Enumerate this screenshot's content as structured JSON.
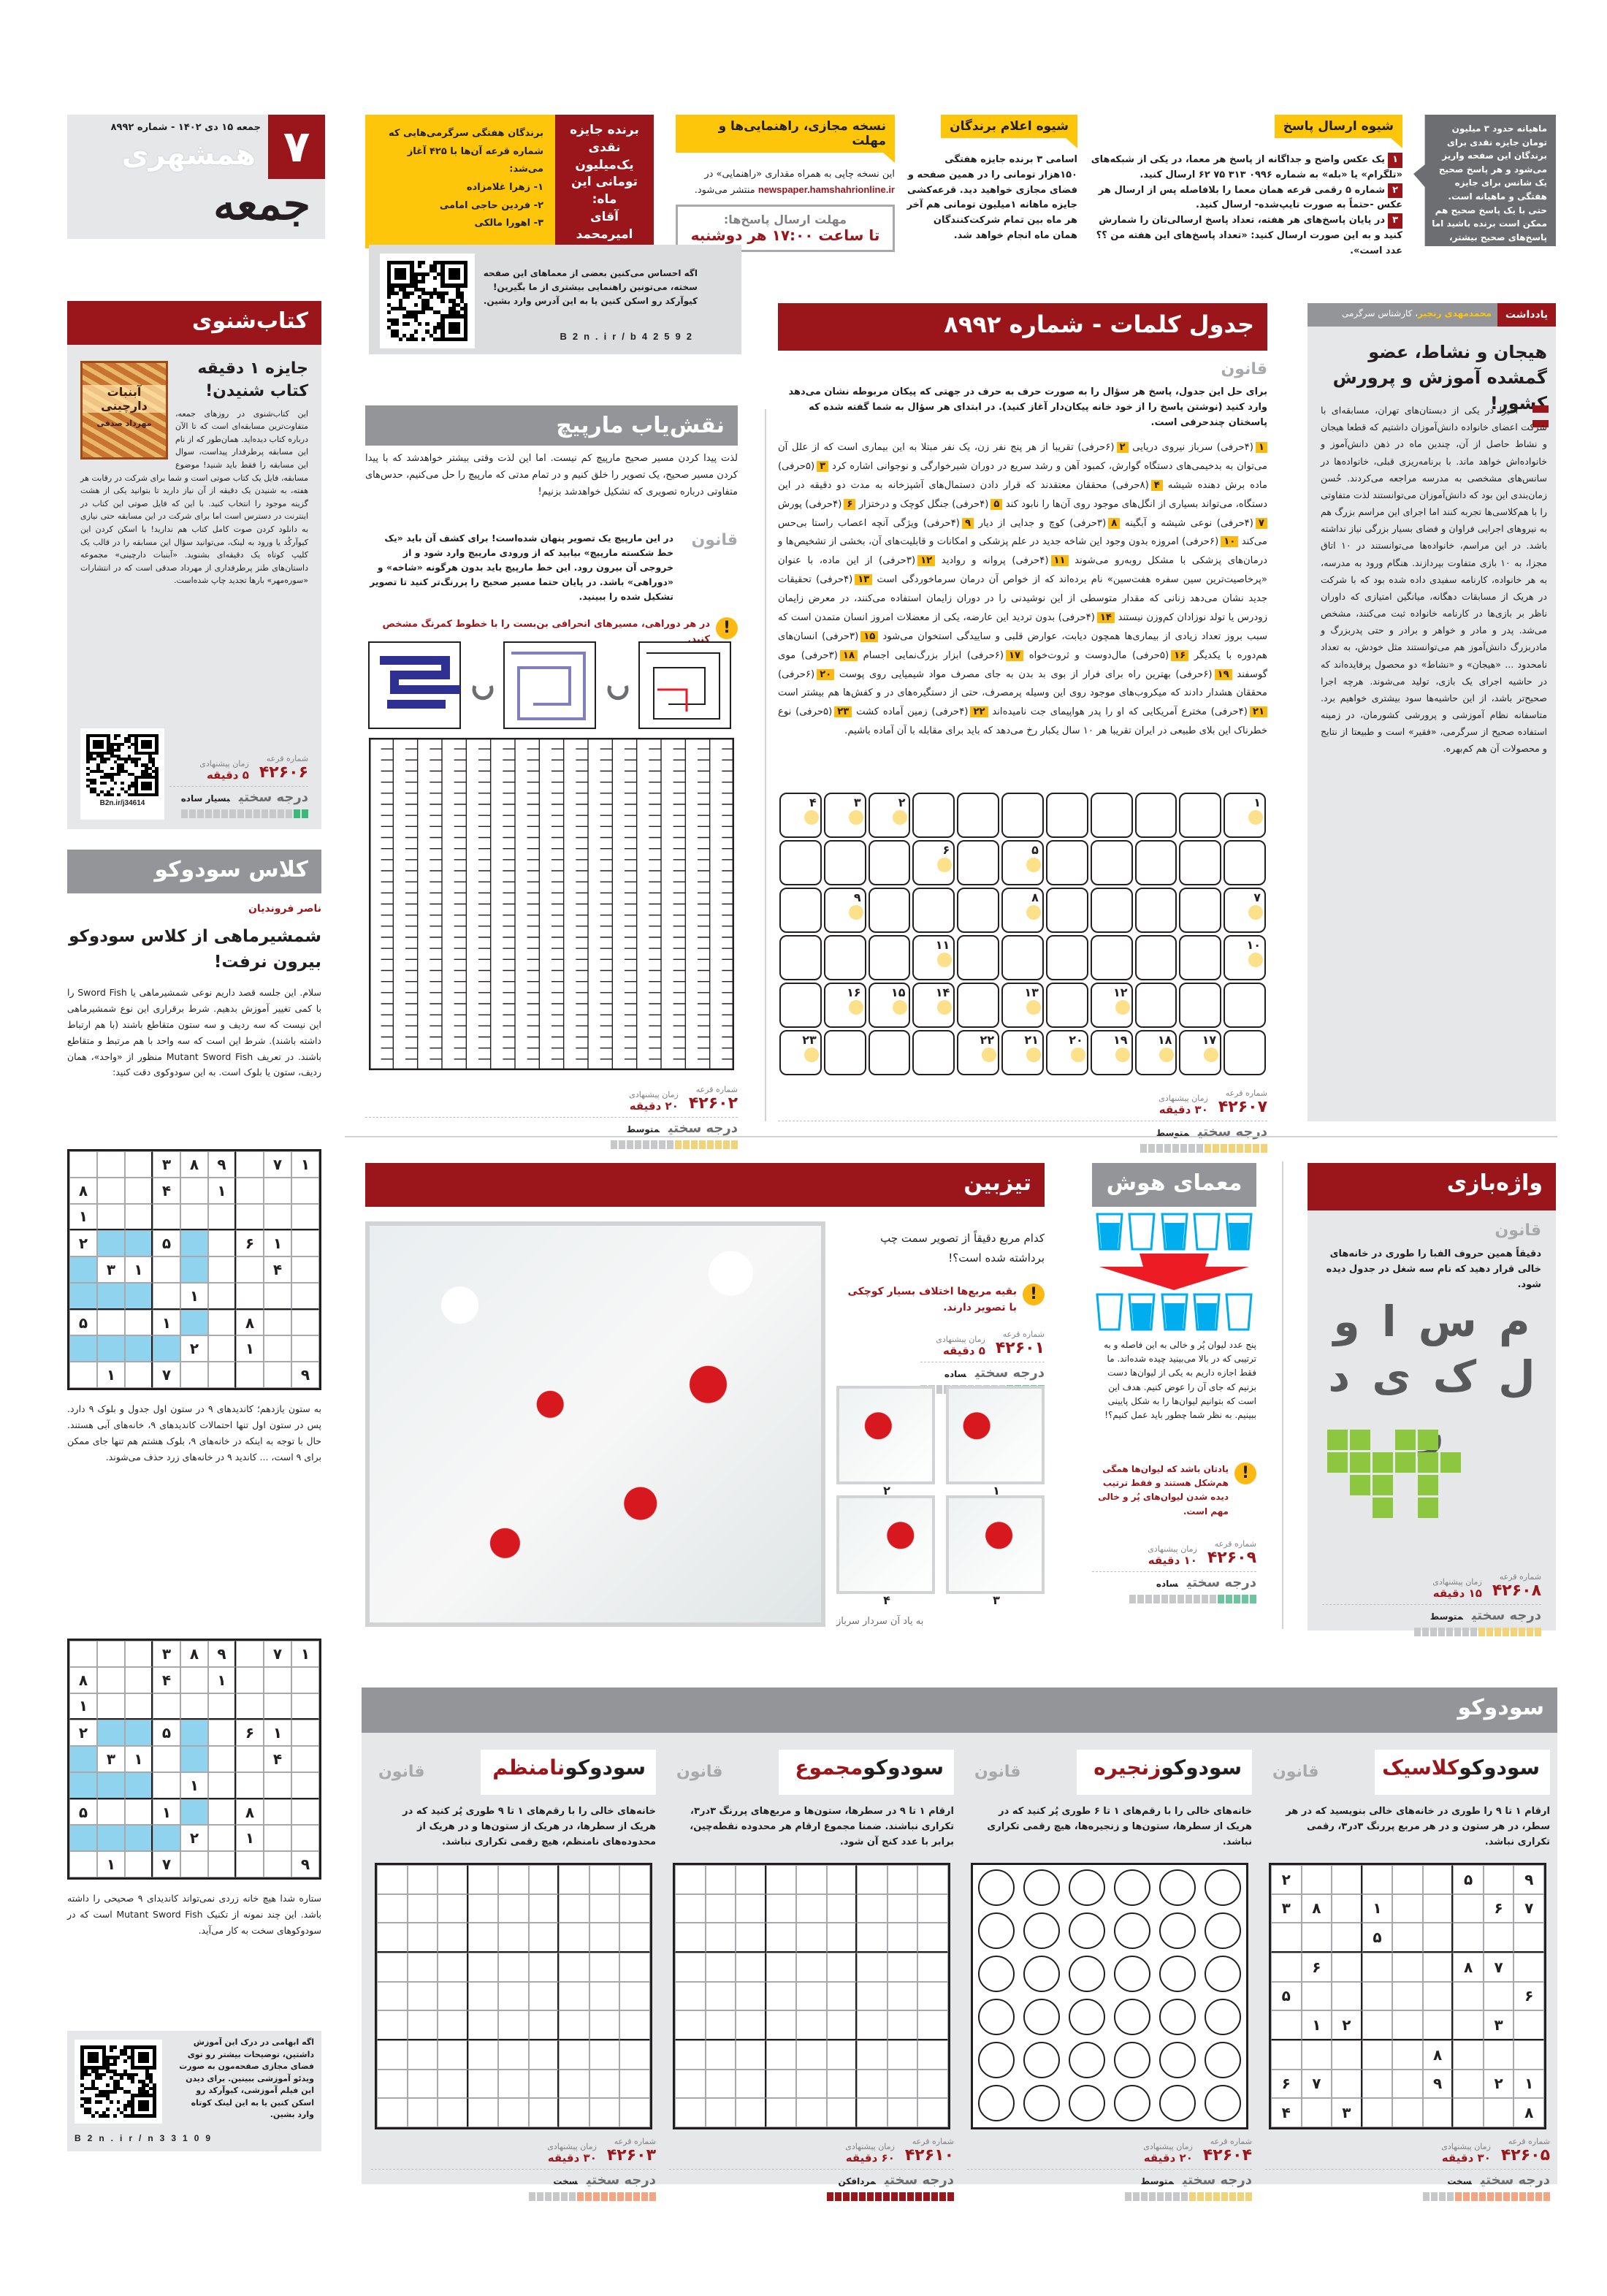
{
  "masthead": {
    "page_number": "۷",
    "date_issue": "جمعه ۱۵ دی ۱۴۰۲ - شماره ۸۹۹۲",
    "paper_name": "همشهری",
    "supplement": "جمعه"
  },
  "winners": {
    "intro": "برندگان هفتگی سرگرمی‌هایی که شماره قرعه آن‌ها با ۴۲۵ آغاز می‌شد:",
    "list": [
      "۱- زهرا غلامزاده",
      "۲- فردین حاجی امامی",
      "۳- اهورا مالکی"
    ],
    "prize_title": "برنده جایزه نقدی یک‌میلیون تومانی این ماه:",
    "prize_winner": "آقای امیرمحمد شکوهی"
  },
  "guide": {
    "online": {
      "title": "نسخه مجازی، راهنمایی‌ها و مهلت",
      "text": "این نسخه چاپی به همراه مقداری «راهنمایی» در",
      "url": "newspaper.hamshahrionline.ir",
      "text2": "منتشر می‌شود.",
      "deadline_label": "مهلت ارسال پاسخ‌ها:",
      "deadline": "تا ساعت ۱۷:۰۰ هر دوشنبه"
    },
    "announce": {
      "title": "شیوه اعلام برندگان",
      "text": "اسامی ۳ برنده جایزه هفتگی ۱۵۰هزار تومانی را در همین صفحه و فضای مجازی خواهید دید. قرعه‌کشی جایزه ماهانه ۱میلیون تومانی هم آخر هر ماه بین تمام شرکت‌کنندگان همان ماه انجام خواهد شد."
    },
    "send": {
      "title": "شیوه ارسال پاسخ",
      "steps": [
        {
          "n": "۱",
          "t": "یک عکس واضح و جداگانه از پاسخ هر معما، در یکی از شبکه‌های «تلگرام» یا «بله» به شماره ۰۹۹۶ ۳۱۳ ۷۵ ۶۲ ارسال کنید."
        },
        {
          "n": "۲",
          "t": "شماره ۵ رقمی قرعه همان معما را بلافاصله پس از ارسال هر عکس -حتماً به صورت تایپ‌شده- ارسال کنید."
        },
        {
          "n": "۳",
          "t": "در پایان پاسخ‌های هر هفته، تعداد پاسخ ارسالی‌تان را شمارش کنید و به این صورت ارسال کنید: «تعداد پاسخ‌های این هفته من ؟؟ عدد است»."
        }
      ]
    },
    "callout": "ماهیانه حدود ۳ میلیون تومان جایزه نقدی برای برندگان این صفحه واریز می‌شود و هر پاسخ صحیح یک شانس برای جایزه هفتگی و ماهیانه است. حتی با یک پاسخ صحیح هم ممکن است برنده باشید اما پاسخ‌های صحیح بیشتر، شانس بالاتر برای برنده شدن در قرعه‌کشی است."
  },
  "qr_help": {
    "text": "اگه احساس می‌کنین بعضی از معماهای این صفحه سخته، می‌تونین راهنمایی بیشتری از ما بگیرین! کیوآرکد رو اسکن کنین یا به این آدرس وارد بشین.",
    "link": "B2n.ir/b42592"
  },
  "labels": {
    "rule": "قانون",
    "difficulty": "درجه سختی",
    "lottery": "شماره قرعه",
    "time": "زمان پیشنهادی"
  },
  "book": {
    "header": "کتاب‌شنوی",
    "title": "جایزه ۱ دقیقه کتاب شنیدن!",
    "cover_title": "آبنبات دارچینی",
    "cover_author": "مهرداد صدقی",
    "body": "این کتاب‌شنوی در روزهای جمعه، متفاوت‌ترین مسابقه‌ای است که تا الآن درباره کتاب دیده‌اید. همان‌طور که از نام این مسابقه پرطرفدار پیداست، سوال این مسابقه را فقط باید شنید! موضوع مسابقه، فایل یک کتاب صوتی است و شما برای شرکت در رقابت هر هفته، به شنیدن یک دقیقه از آن نیاز دارید تا بتوانید یکی از هشت گزینه موجود را انتخاب کنید. با این که فایل صوتی این کتاب در اینترنت در دسترس است اما برای شرکت در این مسابقه حتی نیازی به دانلود کردن صوت کامل کتاب هم ندارید! با اسکن کردن این کیوآرکُد یا ورود به لینک، می‌توانید سؤال این مسابقه را در قالب یک کلیپ کوتاه یک دقیقه‌ای بشنوید. «آبنبات دارچینی» مجموعه داستان‌های طنز پرطرفداری از مهرداد صدقی است که در انتشارات «سوره‌مهر» بارها تجدید چاپ شده‌است.",
    "qr_link": "B2n.ir/j34614",
    "footer": {
      "lottery": "۴۲۶۰۶",
      "time": "۵ دقیقه",
      "level": "بسیار ساده",
      "fill": 0.15,
      "color": "#3cb878"
    }
  },
  "sudoku_class": {
    "header": "کلاس سودوکو",
    "author": "ناصر فروندیان",
    "title": "شمشیرماهی از کلاس سودوکو بیرون نرفت!",
    "body": "سلام. این جلسه قصد داریم نوعی شمشیرماهی یا Sword Fish را با کمی تغییر آموزش بدهیم. شرط برقراری این نوع شمشیرماهی این نیست که سه ردیف و سه ستون متقاطع باشند (با هم ارتباط داشته باشند). شرط این است که سه واحد با هم مرتبط و متقاطع باشند. در تعریف Mutant Sword Fish منظور از «واحد»، همان ردیف، ستون یا بلوک است. به این سودوکوی دقت کنید:",
    "grid": [
      "___389_71",
      "8__4_1___",
      "1________",
      "2cc5c_61_",
      "c31_c__4_",
      "ccc_1____",
      "5__1c_8__",
      "cccc2_1__",
      "_1_7____9"
    ],
    "body2": "به ستون یازدهم؛ کاندیدهای ۹ در ستون اول جدول و بلوک ۹ دارد. پس در ستون اول تنها احتمالات کاندیدهای ۹، خانه‌های آبی هستند. حال با توجه به اینکه در خانه‌های ۹، بلوک هشتم هم تنها جای ممکن برای ۹ است، ... کاندید ۹ در خانه‌های زرد حذف می‌شوند.",
    "body3": "ستاره شدا هیچ خانه زردی نمی‌تواند کاندیدای ۹ صحیحی را داشته باشد. این چند نمونه از تکنیک Mutant Sword Fish است که در سودوکوهای سخت به کار می‌آید.",
    "qr_text": "اگه ابهامی در درک این آموزش داشتین، توضیحات بیشتر رو توی فضای مجازی صفحه‌مون به صورت ویدئو آموزشی ببینین. برای دیدن این فیلم آموزشی، کیوآرکد رو اسکن کنین یا به این لینک کوتاه وارد بشین.",
    "qr_link": "B2n.ir/n33109"
  },
  "maze": {
    "header": "نقش‌یاب مارپیچ",
    "intro": "لذت پیدا کردن مسیر صحیح مارپیچ کم نیست. اما این لذت وقتی بیشتر خواهدشد که با پیدا کردن مسیر صحیح، یک تصویر را خلق کنیم و در تمام مدتی که مارپیچ را حل می‌کنیم، حدس‌های متفاوتی درباره تصویری که تشکیل خواهدشد بزنیم!",
    "rule": "در این مارپیچ یک تصویر پنهان شده‌است! برای کشف آن باید «یک خط شکسته مارپیچ» بیابید که از ورودی مارپیچ وارد شود و از خروجی آن بیرون رود. این خط مارپیچ باید بدون هرگونه «شاخه» و «دوراهی» باشد. در پایان حتما مسیر صحیح را پررنگ‌تر کنید تا تصویر تشکیل شده را ببینید.",
    "warn": "در هر دوراهی، مسیرهای انحرافی بن‌بست را با خطوط کمرنگ مشخص کنید.",
    "footer": {
      "lottery": "۴۲۶۰۲",
      "time": "۲۰ دقیقه",
      "level": "متوسط",
      "fill": 0.5,
      "color": "#f2d37a"
    }
  },
  "crossword": {
    "header": "جدول کلمات - شماره ۸۹۹۲",
    "rule": "برای حل این جدول، پاسخ هر سؤال را به صورت حرف به حرف در جهتی که پیکان مربوطه نشان می‌دهد وارد کنید (نوشتن پاسخ را از خود خانه پیکان‌دار آغاز کنید). در ابتدای هر سؤال به شما گفته شده که پاسختان چندحرفی است.",
    "clues": [
      [
        "۱",
        "(۴حرفی) سرباز نیروی دریایی"
      ],
      [
        "۲",
        "(۶حرفی) تقریبا از هر پنج نفر زن، یک نفر مبتلا به این بیماری است که از علل آن می‌توان به بدخیمی‌های دستگاه گوارش، کمبود آهن و رشد سریع در دوران شیرخوارگی و نوجوانی اشاره کرد"
      ],
      [
        "۳",
        "(۵حرفی) ماده برش دهنده شیشه"
      ],
      [
        "۴",
        "(۸حرفی) محققان معتقدند که قرار دادن دستمال‌های آشپزخانه به مدت دو دقیقه در این دستگاه، می‌تواند بسیاری از انگل‌های موجود روی آن‌ها را نابود کند"
      ],
      [
        "۵",
        "(۴حرفی) جنگل کوچک و درختزار"
      ],
      [
        "۶",
        "(۴حرفی) پورش"
      ],
      [
        "۷",
        "(۴حرفی) نوعی شیشه و آبگینه"
      ],
      [
        "۸",
        "(۳حرفی) کوچ و جدایی از دیار"
      ],
      [
        "۹",
        "(۴حرفی) ویژگی آنچه اعصاب راستا بی‌حس می‌کند"
      ],
      [
        "۱۰",
        "(۶حرفی) امروزه بدون وجود این شاخه جدید در علم پزشکی و امکانات و قابلیت‌های آن، بخشی از تشخیص‌ها و درمان‌های پزشکی با مشکل روبه‌رو می‌شوند"
      ],
      [
        "۱۱",
        "(۴حرفی) پروانه و روادید"
      ],
      [
        "۱۲",
        "(۳حرفی) از این ماده، با عنوان «پرخاصیت‌ترین سین سفره هفت‌سین» نام برده‌اند که از خواص آن درمان سرماخوردگی است"
      ],
      [
        "۱۳",
        "(۴حرفی) تحقیقات جدید نشان می‌دهد زنانی که مقدار متوسطی از این نوشیدنی را در دوران زایمان استفاده می‌کنند، در معرض زایمان زودرس یا تولد نوزادان کم‌وزن نیستند"
      ],
      [
        "۱۴",
        "(۴حرفی) بدون تردید این عارضه، یکی از معضلات امروز انسان متمدن است که سبب بروز تعداد زیادی از بیماری‌ها همچون دیابت، عوارض قلبی و ساییدگی استخوان می‌شود"
      ],
      [
        "۱۵",
        "(۳حرفی) انسان‌های هم‌دوره با یکدیگر"
      ],
      [
        "۱۶",
        "(۵حرفی) مال‌دوست و ثروت‌خواه"
      ],
      [
        "۱۷",
        "(۶حرفی) ابزار بزرگ‌نمایی اجسام"
      ],
      [
        "۱۸",
        "(۳حرفی) موی گوسفند"
      ],
      [
        "۱۹",
        "(۶حرفی) بهترین راه برای فرار از بوی بد بدن به جای مصرف مواد شیمیایی روی پوست"
      ],
      [
        "۲۰",
        "(۶حرفی) محققان هشدار دادند که میکروب‌های موجود روی این وسیله پرمصرف، حتی از دستگیره‌های در و کفش‌ها هم بیشتر است"
      ],
      [
        "۲۱",
        "(۴حرفی) مخترع آمریکایی که او را پدر هواپیمای جت نامیده‌اند"
      ],
      [
        "۲۲",
        "(۴حرفی) زمین آماده کشت"
      ],
      [
        "۲۳",
        "(۵حرفی) نوع خطرناک این بلای طبیعی در ایران تقریبا هر ۱۰ سال یکبار رخ می‌دهد که باید برای مقابله با آن آماده باشیم."
      ]
    ],
    "grid_numbers": [
      [
        "۴",
        "۳",
        "۲",
        "",
        "",
        "",
        "",
        "",
        "",
        "",
        "۱"
      ],
      [
        "",
        "",
        "",
        "۶",
        "",
        "۵",
        "",
        "",
        "",
        "",
        ""
      ],
      [
        "",
        "۹",
        "",
        "",
        "",
        "۸",
        "",
        "",
        "",
        "",
        "۷"
      ],
      [
        "",
        "",
        "",
        "۱۱",
        "",
        "",
        "",
        "",
        "",
        "",
        "۱۰"
      ],
      [
        "",
        "۱۶",
        "۱۵",
        "۱۴",
        "",
        "۱۳",
        "",
        "۱۲",
        "",
        "",
        ""
      ],
      [
        "۲۳",
        "",
        "",
        "",
        "۲۲",
        "۲۱",
        "۲۰",
        "۱۹",
        "۱۸",
        "۱۷",
        ""
      ]
    ],
    "footer": {
      "lottery": "۴۲۶۰۷",
      "time": "۳۰ دقیقه",
      "level": "متوسط",
      "fill": 0.5,
      "color": "#f2d37a"
    }
  },
  "editorial": {
    "kicker": "یادداشت",
    "author": "محمدمهدی رنجبر",
    "role": "، کارشناس سرگرمی",
    "title": "هیجان و نشاط، عضو گمشده آموزش و پرورش کشور!",
    "body": "اخیرا در یکی از دبستان‌های تهران، مسابقه‌ای با شرکت اعضای خانواده دانش‌آموزان داشتیم که قطعا هیجان و نشاط حاصل از آن، چندین ماه در ذهن دانش‌آموز و خانواده‌اش خواهد ماند. با برنامه‌ریزی قبلی، خانواده‌ها در سانس‌های مشخصی به مدرسه مراجعه می‌کردند. حُسن زمان‌بندی این بود که دانش‌آموزان می‌توانستند لذت متفاوتی را با هم‌کلاسی‌ها تجربه کنند اما اجرای این مراسم بزرگ هم به نیروهای اجرایی فراوان و فضای بسیار بزرگی نیاز نداشته باشد. در این مراسم، خانواده‌ها می‌توانستند در ۱۰ اتاق مجزا، به ۱۰ بازی متفاوت بپردازند. هنگام ورود به مدرسه، به هر خانواده، کارنامه سفیدی داده شده بود که با شرکت در هریک از مسابقات دهگانه، میانگین امتیازی که داوران ناظر بر بازی‌ها در کارنامه خانواده ثبت می‌کنند، مشخص می‌شد. پدر و مادر و خواهر و برادر و حتی پدربزرگ و مادربزرگ دانش‌آموز هم می‌توانستند مثل خودش، به تعداد نامحدود ... «هیجان» و «نشاط» دو محصول پرفایده‌اند که در حاشیه اجرای یک بازی، تولید می‌شوند. هرچه اجرا صحیح‌تر باشد، از این حاشیه‌ها سود بیشتری خواهیم برد. متاسفانه نظام آموزشی و پرورشی کشورمان، در زمینه استفاده صحیح از سرگرمی، «فقیر» است و طبیعتا از نتایج و محصولات آن هم کم‌بهره."
  },
  "tizbin": {
    "header": "تیزبین",
    "question": "کدام مربع دقیقاً از تصویر سمت چپ برداشته شده است؟!",
    "warn": "بقیه مربع‌ها اختلاف بسیار کوچکی با تصویر دارند.",
    "options": [
      "۱",
      "۲",
      "۳",
      "۴"
    ],
    "caption": "به یاد آن سردار سرباز",
    "footer": {
      "lottery": "۴۲۶۰۱",
      "time": "۵ دقیقه",
      "level": "ساده",
      "fill": 0.3,
      "color": "#6cc5a0"
    }
  },
  "hoosh": {
    "header": "معمای هوش",
    "glasses_top": [
      "full",
      "empty",
      "full",
      "empty",
      "full"
    ],
    "glasses_bottom": [
      "empty",
      "full",
      "full",
      "full",
      "empty"
    ],
    "text": "پنج عدد لیوان پُر و خالی به این فاصله و به ترتیبی که در بالا می‌بینید چیده شده‌اند. ما فقط اجازه داریم به یکی از لیوان‌ها دست بزنیم که جای آن را عوض کنیم. هدف این است که بتوانیم لیوان‌ها را به شکل پایینی ببینیم. به نظر شما چطور باید عمل کنیم؟!",
    "warn": "یادتان باشد که لیوان‌ها همگی هم‌شکل هستند و فقط ترتیب دیده شدن لیوان‌های پُر و خالی مهم است.",
    "footer": {
      "lottery": "۴۲۶۰۹",
      "time": "۱۰ دقیقه",
      "level": "ساده",
      "fill": 0.31,
      "color": "#6cc5a0"
    }
  },
  "vazhe": {
    "header": "واژه‌بازی",
    "text": "دقیقاً همین حروف الفبا را طوری در خانه‌های خالی قرار دهید که نام سه شغل در جدول دیده شود.",
    "letters": "م س ا و ل ک ی د ر",
    "footer": {
      "lottery": "۴۲۶۰۸",
      "time": "۱۵ دقیقه",
      "level": "متوسط",
      "fill": 0.5,
      "color": "#f2d37a"
    }
  },
  "sudoku": {
    "header": "سودوکو",
    "prefix": "سودوکو",
    "panels": [
      {
        "variant": "کلاسیک",
        "rule": "ارقام ۱ تا ۹ را طوری در خانه‌های خالی بنویسید که در هر سطر، در هر ستون و در هر مربع پررنگ ۳در۳، رقمی تکراری نباشد.",
        "grid": [
          "2_____5_9",
          "38_1___67",
          "___5_____",
          "_6____87_",
          "5_______6",
          "_12____3_",
          "_____8___",
          "67___9_21",
          "4_3_____8"
        ],
        "footer": {
          "lottery": "۴۲۶۰۵",
          "time": "۳۰ دقیقه",
          "level": "سخت",
          "fill": 0.75,
          "color": "#f4a582"
        }
      },
      {
        "variant": "زنجیره",
        "rule": "خانه‌های خالی را با رقم‌های ۱ تا ۶ طوری پُر کنید که در هریک از سطرها، ستون‌ها و زنجیره‌ها، هیچ رقمی تکراری نباشد.",
        "footer": {
          "lottery": "۴۲۶۰۴",
          "time": "۲۰ دقیقه",
          "level": "متوسط",
          "fill": 0.5,
          "color": "#f2d37a"
        }
      },
      {
        "variant": "مجموع",
        "rule": "ارقام ۱ تا ۹ در سطرها، ستون‌ها و مربع‌های پررنگ ۳در۳، تکراری نباشند. ضمنا مجموع ارقام هر محدوده نقطه‌چین، برابر با عدد کنج آن شود.",
        "footer": {
          "lottery": "۴۲۶۱۰",
          "time": "۶۰ دقیقه",
          "level": "مردافکن",
          "fill": 1,
          "color": "#9b161b"
        }
      },
      {
        "variant": "نامنظم",
        "rule": "خانه‌های خالی را با رقم‌های ۱ تا ۹ طوری پُر کنید که در هریک از سطرها، در هریک از ستون‌ها و در هریک از محدوده‌های نامنظم، هیچ رقمی تکراری نباشد.",
        "footer": {
          "lottery": "۴۲۶۰۳",
          "time": "۳۰ دقیقه",
          "level": "سخت",
          "fill": 0.65,
          "color": "#f4a582"
        }
      }
    ]
  },
  "colors": {
    "brand_red": "#9b161b",
    "accent_yellow": "#fdc60a",
    "header_gray": "#939598",
    "panel_gray": "#e6e7e8",
    "water_blue": "#00aeef"
  }
}
